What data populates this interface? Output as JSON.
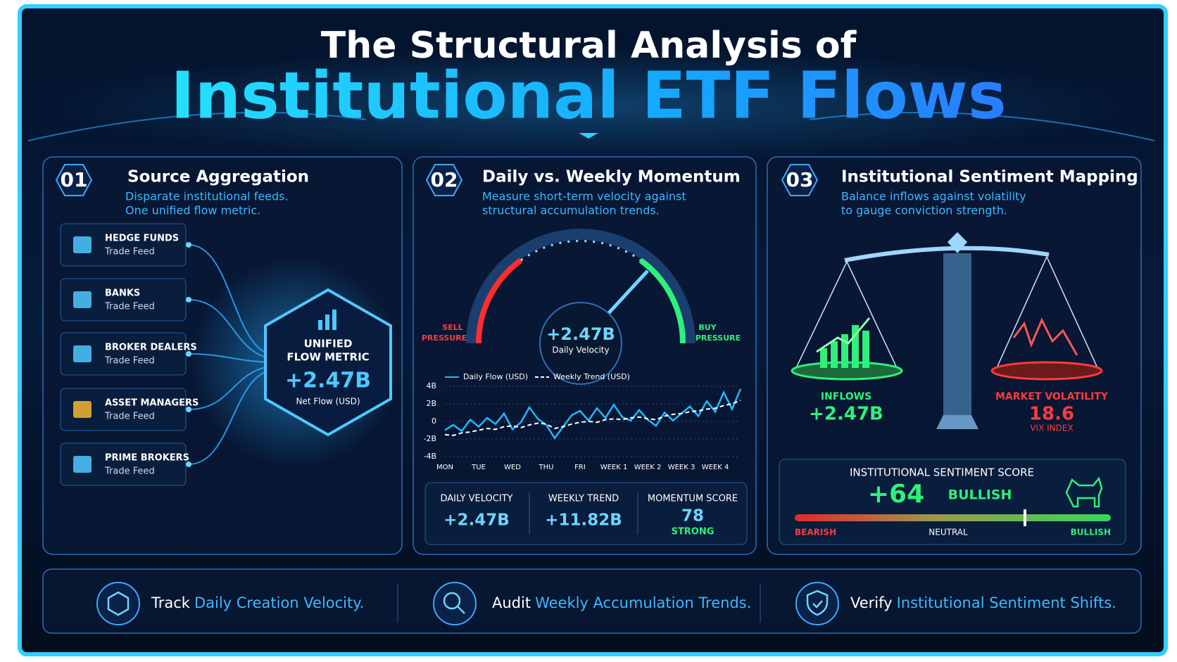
{
  "header": {
    "title_line1": "The Structural Analysis of",
    "title_line2": "Institutional ETF Flows"
  },
  "panels": [
    {
      "number": "01",
      "title": "Source Aggregation",
      "subtitle": [
        "Disparate institutional feeds.",
        "One unified flow metric."
      ],
      "sources": [
        {
          "name": "HEDGE FUNDS",
          "feed": "Trade Feed"
        },
        {
          "name": "BANKS",
          "feed": "Trade Feed"
        },
        {
          "name": "BROKER DEALERS",
          "feed": "Trade Feed"
        },
        {
          "name": "ASSET MANAGERS",
          "feed": "Trade Feed"
        },
        {
          "name": "PRIME BROKERS",
          "feed": "Trade Feed"
        }
      ],
      "hub": {
        "label": [
          "UNIFIED",
          "FLOW METRIC"
        ],
        "value": "+2.47B",
        "caption": "Net Flow (USD)"
      }
    },
    {
      "number": "02",
      "title": "Daily vs. Weekly Momentum",
      "subtitle": [
        "Measure short-term velocity against",
        "structural accumulation trends."
      ],
      "gauge": {
        "left_label": [
          "SELL",
          "PRESSURE"
        ],
        "right_label": [
          "BUY",
          "PRESSURE"
        ],
        "value": "+2.47B",
        "caption": "Daily Velocity"
      },
      "chart": {
        "type": "line",
        "categories": [
          "MON",
          null,
          null,
          null,
          "TUE",
          null,
          null,
          null,
          "WED",
          null,
          null,
          null,
          "THU",
          null,
          null,
          null,
          "FRI",
          null,
          null,
          null,
          "WEEK 1",
          null,
          null,
          null,
          "WEEK 2",
          null,
          null,
          null,
          "WEEK 3",
          null,
          null,
          null,
          "WEEK 4",
          null,
          null,
          null
        ],
        "series": [
          {
            "name": "Daily Flow (USD)",
            "color": "#22b8ff",
            "line_style": "solid",
            "values": [
              -1.0,
              -0.4,
              -1.1,
              0.2,
              -0.6,
              0.4,
              -0.3,
              0.9,
              -0.9,
              -0.1,
              1.6,
              0.3,
              -0.4,
              -1.9,
              -0.6,
              0.7,
              1.2,
              0.1,
              1.5,
              0.4,
              1.9,
              0.5,
              0.1,
              1.3,
              0.2,
              -0.5,
              1.0,
              0.1,
              0.9,
              1.7,
              0.6,
              2.3,
              1.1,
              3.3,
              1.4,
              3.7
            ]
          },
          {
            "name": "Weekly Trend (USD)",
            "color": "#ffffff",
            "line_style": "dashed",
            "values": [
              -1.5,
              -1.6,
              -1.3,
              -1.2,
              -1.0,
              -0.8,
              -0.9,
              -0.6,
              -0.5,
              -0.7,
              -0.4,
              -0.2,
              -0.3,
              -0.8,
              -0.6,
              -0.3,
              -0.1,
              0.0,
              -0.1,
              0.2,
              0.3,
              0.2,
              0.4,
              0.5,
              0.3,
              0.2,
              0.6,
              0.8,
              0.9,
              1.1,
              1.2,
              1.4,
              1.5,
              1.8,
              2.0,
              2.4
            ]
          }
        ],
        "ylim": [
          -4,
          4
        ],
        "yticks": [
          {
            "value": 4,
            "label": "4B"
          },
          {
            "value": 2,
            "label": "2B"
          },
          0,
          {
            "value": -2,
            "label": "-2B"
          },
          {
            "value": -4,
            "label": "-4B"
          }
        ],
        "grid": true
      },
      "stats": [
        {
          "label": "DAILY VELOCITY",
          "value": "+2.47B"
        },
        {
          "label": "WEEKLY TREND",
          "value": "+11.82B"
        },
        {
          "label": "MOMENTUM SCORE",
          "value": "78",
          "note": "STRONG"
        }
      ]
    },
    {
      "number": "03",
      "title": "Institutional Sentiment Mapping",
      "subtitle": [
        "Balance inflows against volatility",
        "to gauge conviction strength."
      ],
      "inflows": {
        "label": "INFLOWS",
        "value": "+2.47B"
      },
      "volatility": {
        "label": "MARKET VOLATILITY",
        "value": "18.6",
        "note": "VIX INDEX"
      },
      "score": {
        "title": "INSTITUTIONAL SENTIMENT SCORE",
        "value": "+64",
        "rating": "BULLISH",
        "scale": [
          "BEARISH",
          "NEUTRAL",
          "BULLISH"
        ]
      }
    }
  ],
  "footer": [
    {
      "text": "Track",
      "highlight": "Daily Creation Velocity."
    },
    {
      "text": "Audit",
      "highlight": "Weekly Accumulation Trends."
    },
    {
      "text": "Verify",
      "highlight": "Institutional Sentiment Shifts."
    }
  ]
}
